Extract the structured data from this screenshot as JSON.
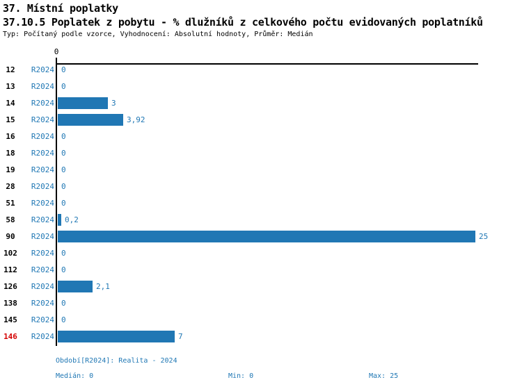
{
  "header": {
    "title": "37. Místní poplatky",
    "subtitle": "37.10.5 Poplatek z pobytu - % dlužníků z celkového počtu evidovaných poplatníků",
    "meta": "Typ: Počítaný podle vzorce, Vyhodnocení: Absolutní hodnoty, Průměr: Medián"
  },
  "axis": {
    "origin_label": "0"
  },
  "chart_data": {
    "type": "bar",
    "orientation": "horizontal",
    "title": "37. Místní poplatky",
    "subtitle": "37.10.5 Poplatek z pobytu - % dlužníků z celkového počtu evidovaných poplatníků",
    "series_name": "R2024",
    "xlim": [
      0,
      25
    ],
    "x_ticks": [
      "0"
    ],
    "grid": false,
    "categories": [
      "12",
      "13",
      "14",
      "15",
      "16",
      "18",
      "19",
      "28",
      "51",
      "58",
      "90",
      "102",
      "112",
      "126",
      "138",
      "145",
      "146"
    ],
    "values": [
      0,
      0,
      3,
      3.92,
      0,
      0,
      0,
      0,
      0,
      0.2,
      25,
      0,
      0,
      2.1,
      0,
      0,
      7
    ],
    "value_labels": [
      "0",
      "0",
      "3",
      "3,92",
      "0",
      "0",
      "0",
      "0",
      "0",
      "0,2",
      "25",
      "0",
      "0",
      "2,1",
      "0",
      "0",
      "7"
    ],
    "highlighted_category": "146",
    "rows": [
      {
        "category": "12",
        "series": "R2024",
        "value": 0,
        "value_label": "0",
        "highlight": false
      },
      {
        "category": "13",
        "series": "R2024",
        "value": 0,
        "value_label": "0",
        "highlight": false
      },
      {
        "category": "14",
        "series": "R2024",
        "value": 3,
        "value_label": "3",
        "highlight": false
      },
      {
        "category": "15",
        "series": "R2024",
        "value": 3.92,
        "value_label": "3,92",
        "highlight": false
      },
      {
        "category": "16",
        "series": "R2024",
        "value": 0,
        "value_label": "0",
        "highlight": false
      },
      {
        "category": "18",
        "series": "R2024",
        "value": 0,
        "value_label": "0",
        "highlight": false
      },
      {
        "category": "19",
        "series": "R2024",
        "value": 0,
        "value_label": "0",
        "highlight": false
      },
      {
        "category": "28",
        "series": "R2024",
        "value": 0,
        "value_label": "0",
        "highlight": false
      },
      {
        "category": "51",
        "series": "R2024",
        "value": 0,
        "value_label": "0",
        "highlight": false
      },
      {
        "category": "58",
        "series": "R2024",
        "value": 0.2,
        "value_label": "0,2",
        "highlight": false
      },
      {
        "category": "90",
        "series": "R2024",
        "value": 25,
        "value_label": "25",
        "highlight": false
      },
      {
        "category": "102",
        "series": "R2024",
        "value": 0,
        "value_label": "0",
        "highlight": false
      },
      {
        "category": "112",
        "series": "R2024",
        "value": 0,
        "value_label": "0",
        "highlight": false
      },
      {
        "category": "126",
        "series": "R2024",
        "value": 2.1,
        "value_label": "2,1",
        "highlight": false
      },
      {
        "category": "138",
        "series": "R2024",
        "value": 0,
        "value_label": "0",
        "highlight": false
      },
      {
        "category": "145",
        "series": "R2024",
        "value": 0,
        "value_label": "0",
        "highlight": false
      },
      {
        "category": "146",
        "series": "R2024",
        "value": 7,
        "value_label": "7",
        "highlight": true
      }
    ],
    "stats": {
      "median": 0,
      "min": 0,
      "max": 25
    },
    "period": "Realita - 2024"
  },
  "footer": {
    "period": "Období[R2024]: Realita - 2024",
    "median": "Medián: 0",
    "min": "Min: 0",
    "max": "Max: 25"
  },
  "colors": {
    "bar": "#2077b4",
    "blue_text": "#1f77b4",
    "highlight_text": "#d40000",
    "axis": "#000000",
    "background": "#ffffff"
  }
}
